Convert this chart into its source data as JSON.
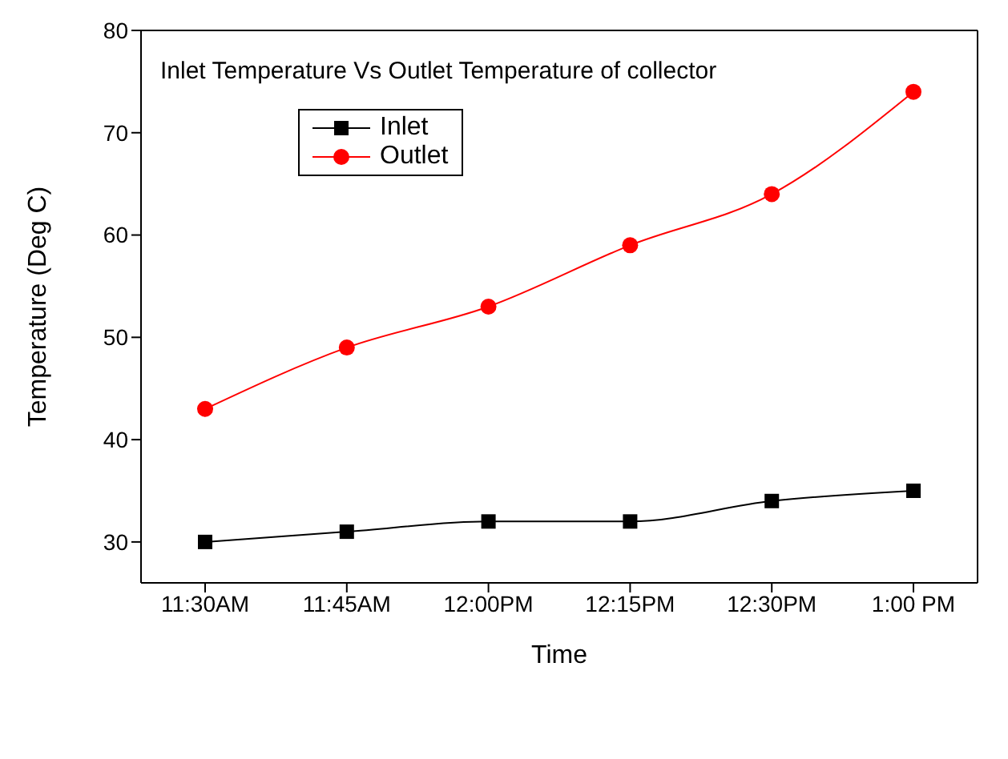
{
  "chart_data": {
    "type": "line",
    "title": "Inlet Temperature Vs Outlet Temperature of collector",
    "xlabel": "Time",
    "ylabel": "Temperature (Deg C)",
    "categories": [
      "11:30AM",
      "11:45AM",
      "12:00PM",
      "12:15PM",
      "12:30PM",
      "1:00 PM"
    ],
    "series": [
      {
        "name": "Inlet",
        "color": "#000000",
        "marker": "square",
        "values": [
          30,
          31,
          32,
          32,
          34,
          35
        ]
      },
      {
        "name": "Outlet",
        "color": "#ff0000",
        "marker": "circle",
        "values": [
          43,
          49,
          53,
          59,
          64,
          74
        ]
      }
    ],
    "ylim": [
      26,
      80
    ],
    "yticks": [
      30,
      40,
      50,
      60,
      70,
      80
    ],
    "grid": false,
    "legend": "top left"
  }
}
